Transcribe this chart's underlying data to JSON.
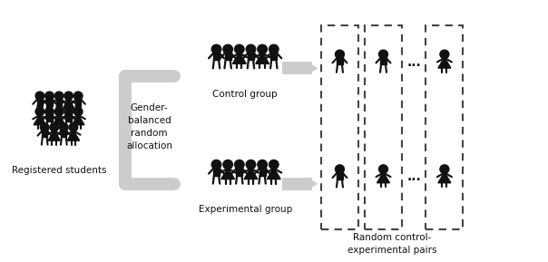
{
  "bg_color": "#ffffff",
  "figure_size": [
    6.04,
    2.89
  ],
  "dpi": 100,
  "text_color": "#111111",
  "figure_color": "#111111",
  "arrow_color": "#aaaaaa",
  "registered_label": "Registered students",
  "gender_label": "Gender-\nbalanced\nrandom\nallocation",
  "control_label": "Control group",
  "experimental_label": "Experimental group",
  "pairs_label": "Random control-\nexperimental pairs",
  "dots": "...",
  "font_size": 7.5,
  "xlim": [
    0,
    10
  ],
  "ylim": [
    0,
    5
  ]
}
